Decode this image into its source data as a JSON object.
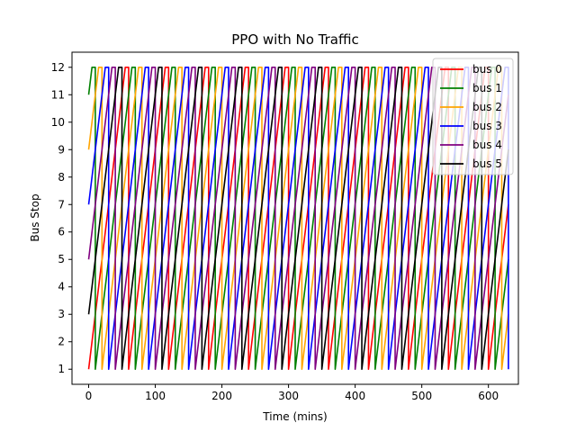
{
  "chart_data": {
    "type": "line",
    "title": "PPO with No Traffic",
    "xlabel": "Time (mins)",
    "ylabel": "Bus Stop",
    "xlim": [
      -25,
      645
    ],
    "ylim": [
      0.45,
      12.55
    ],
    "xticks": [
      0,
      100,
      200,
      300,
      400,
      500,
      600
    ],
    "yticks": [
      1,
      2,
      3,
      4,
      5,
      6,
      7,
      8,
      9,
      10,
      11,
      12
    ],
    "grid": false,
    "legend_position": "top-right",
    "model": {
      "cycle_minutes": 60,
      "minutes_per_stop": 5,
      "wait_at_end_minutes": 5,
      "end_minute": 628
    },
    "series": [
      {
        "name": "bus 0",
        "color": "#ff0000",
        "start_stop": 1,
        "start_time": 0
      },
      {
        "name": "bus 1",
        "color": "#008000",
        "start_stop": 11,
        "start_time": 0
      },
      {
        "name": "bus 2",
        "color": "#ffa500",
        "start_stop": 9,
        "start_time": 0
      },
      {
        "name": "bus 3",
        "color": "#0000ff",
        "start_stop": 7,
        "start_time": 0
      },
      {
        "name": "bus 4",
        "color": "#800080",
        "start_stop": 5,
        "start_time": 0
      },
      {
        "name": "bus 5",
        "color": "#000000",
        "start_stop": 3,
        "start_time": 0
      }
    ]
  }
}
